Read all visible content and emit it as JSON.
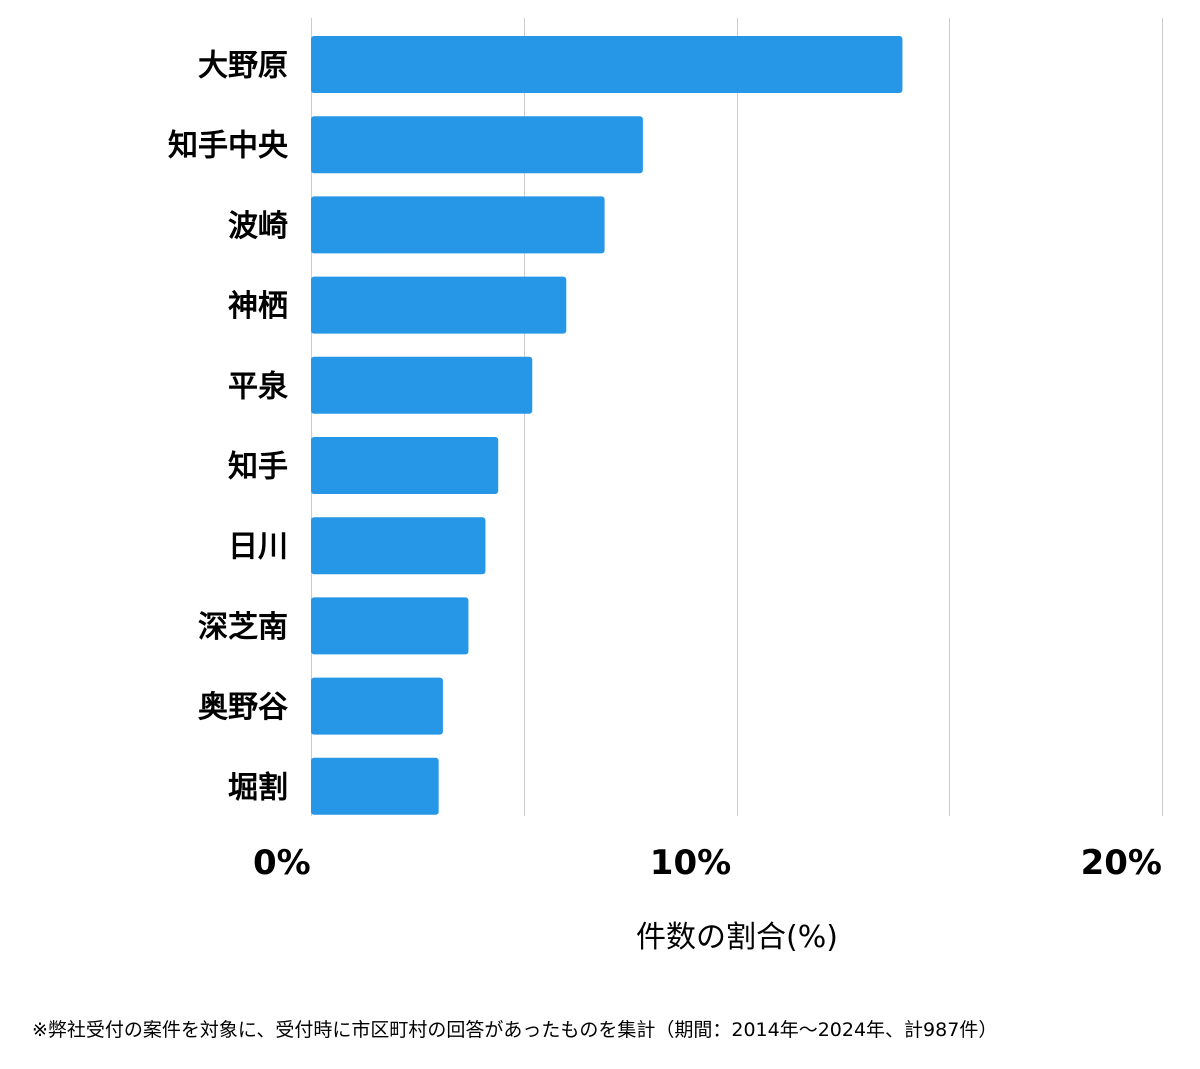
{
  "chart_data": {
    "type": "bar",
    "orientation": "horizontal",
    "categories": [
      "大野原",
      "知手中央",
      "波崎",
      "神栖",
      "平泉",
      "知手",
      "日川",
      "深芝南",
      "奥野谷",
      "堀割"
    ],
    "values": [
      13.9,
      7.8,
      6.9,
      6.0,
      5.2,
      4.4,
      4.1,
      3.7,
      3.1,
      3.0
    ],
    "xlim": [
      0,
      20
    ],
    "ticks": [
      {
        "value": 0,
        "label": "0%"
      },
      {
        "value": 10,
        "label": "10%"
      },
      {
        "value": 20,
        "label": "20%"
      }
    ],
    "gridlines": [
      0,
      5,
      10,
      15,
      20
    ],
    "xlabel": "件数の割合(%)",
    "bar_color": "#2697e6"
  },
  "footnote": "※弊社受付の案件を対象に、受付時に市区町村の回答があったものを集計（期間：2014年～2024年、計987件）"
}
